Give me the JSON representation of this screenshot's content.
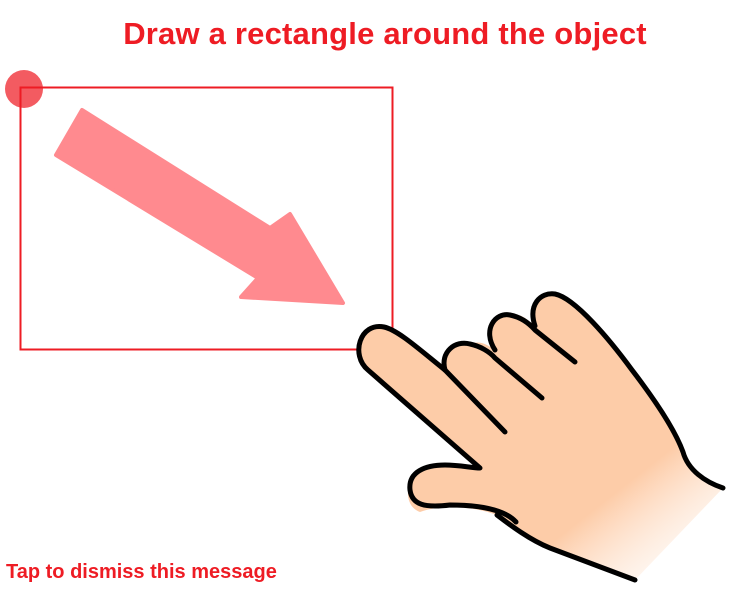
{
  "tutorial": {
    "title": "Draw a rectangle around the object",
    "dismiss_hint": "Tap to dismiss this message"
  },
  "icons": {
    "start_point": "touch-start-dot-icon",
    "arrow": "diagonal-arrow-icon",
    "hand": "pointing-hand-icon"
  },
  "colors": {
    "accent": "#ee1c24",
    "arrow": "#ff8a8f",
    "skin": "#fdcca8",
    "outline": "#000000"
  }
}
